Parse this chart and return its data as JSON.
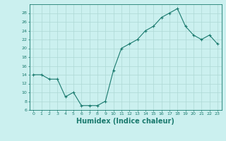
{
  "x": [
    0,
    1,
    2,
    3,
    4,
    5,
    6,
    7,
    8,
    9,
    10,
    11,
    12,
    13,
    14,
    15,
    16,
    17,
    18,
    19,
    20,
    21,
    22,
    23
  ],
  "y": [
    14,
    14,
    13,
    13,
    9,
    10,
    7,
    7,
    7,
    8,
    15,
    20,
    21,
    22,
    24,
    25,
    27,
    28,
    29,
    25,
    23,
    22,
    23,
    21
  ],
  "line_color": "#1a7a6e",
  "marker": "+",
  "marker_size": 3,
  "bg_color": "#cbf0ef",
  "grid_color": "#aed8d5",
  "axis_color": "#1a7a6e",
  "tick_color": "#1a7a6e",
  "xlabel": "Humidex (Indice chaleur)",
  "xlabel_fontsize": 7,
  "ylim": [
    6,
    30
  ],
  "xlim": [
    -0.5,
    23.5
  ],
  "yticks": [
    6,
    8,
    10,
    12,
    14,
    16,
    18,
    20,
    22,
    24,
    26,
    28
  ],
  "xticks": [
    0,
    1,
    2,
    3,
    4,
    5,
    6,
    7,
    8,
    9,
    10,
    11,
    12,
    13,
    14,
    15,
    16,
    17,
    18,
    19,
    20,
    21,
    22,
    23
  ]
}
